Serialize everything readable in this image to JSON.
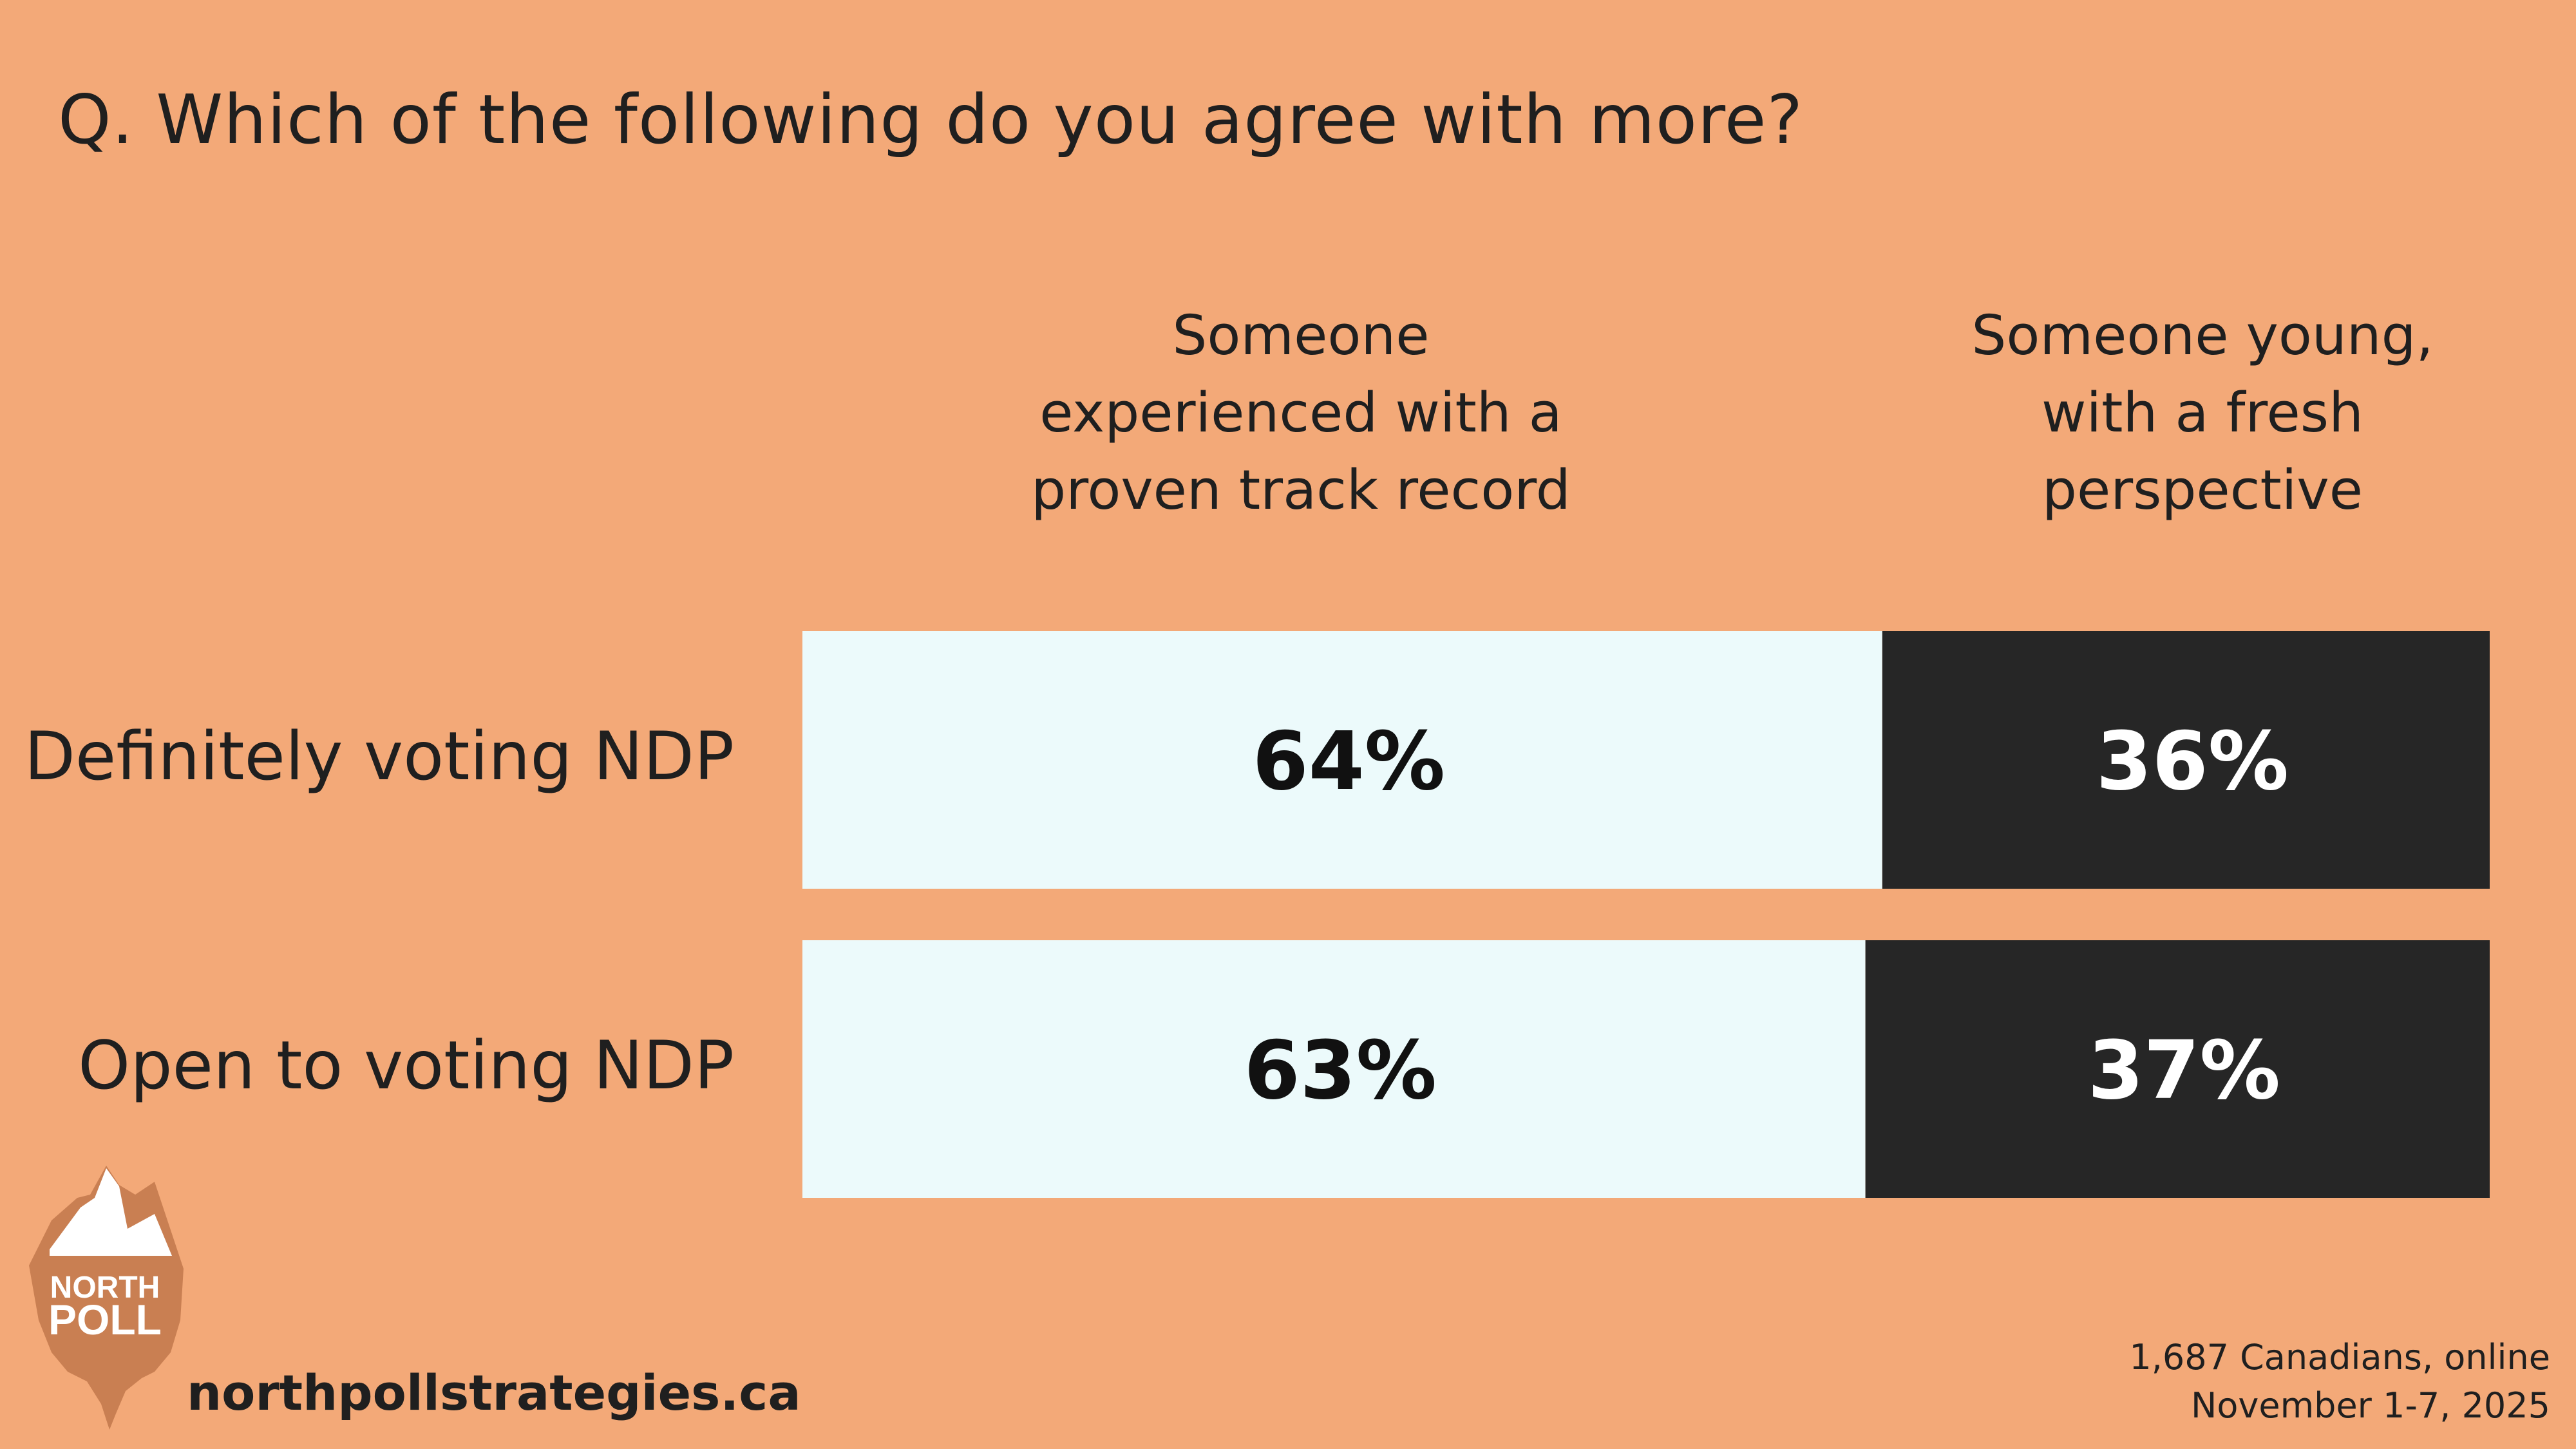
{
  "question": "Q. Which of the following do you agree with more?",
  "chart_data": {
    "type": "bar",
    "stacked": true,
    "orientation": "horizontal",
    "categories": [
      "Definitely voting NDP",
      "Open to voting NDP"
    ],
    "series": [
      {
        "name": "Someone experienced with a proven track record",
        "name_lines": [
          "Someone",
          "experienced with a",
          "proven track record"
        ],
        "values": [
          64,
          63
        ],
        "labels": [
          "64%",
          "63%"
        ],
        "color": "#ecfafb",
        "label_color": "#111111"
      },
      {
        "name": "Someone young, with a fresh perspective",
        "name_lines": [
          "Someone young,",
          "with a fresh",
          "perspective"
        ],
        "values": [
          36,
          37
        ],
        "labels": [
          "36%",
          "37%"
        ],
        "color": "#262626",
        "label_color": "#ffffff"
      }
    ],
    "xlim": [
      0,
      100
    ],
    "grid": false,
    "legend": "top"
  },
  "footer": {
    "url": "northpollstrategies.ca",
    "sample": "1,687 Canadians, online",
    "dates": "November 1-7, 2025"
  },
  "logo": {
    "text_line1": "NORTH",
    "text_line2": "POLL",
    "color": "#c97f52"
  },
  "colors": {
    "background": "#f3a978",
    "text": "#1f1f1f"
  }
}
